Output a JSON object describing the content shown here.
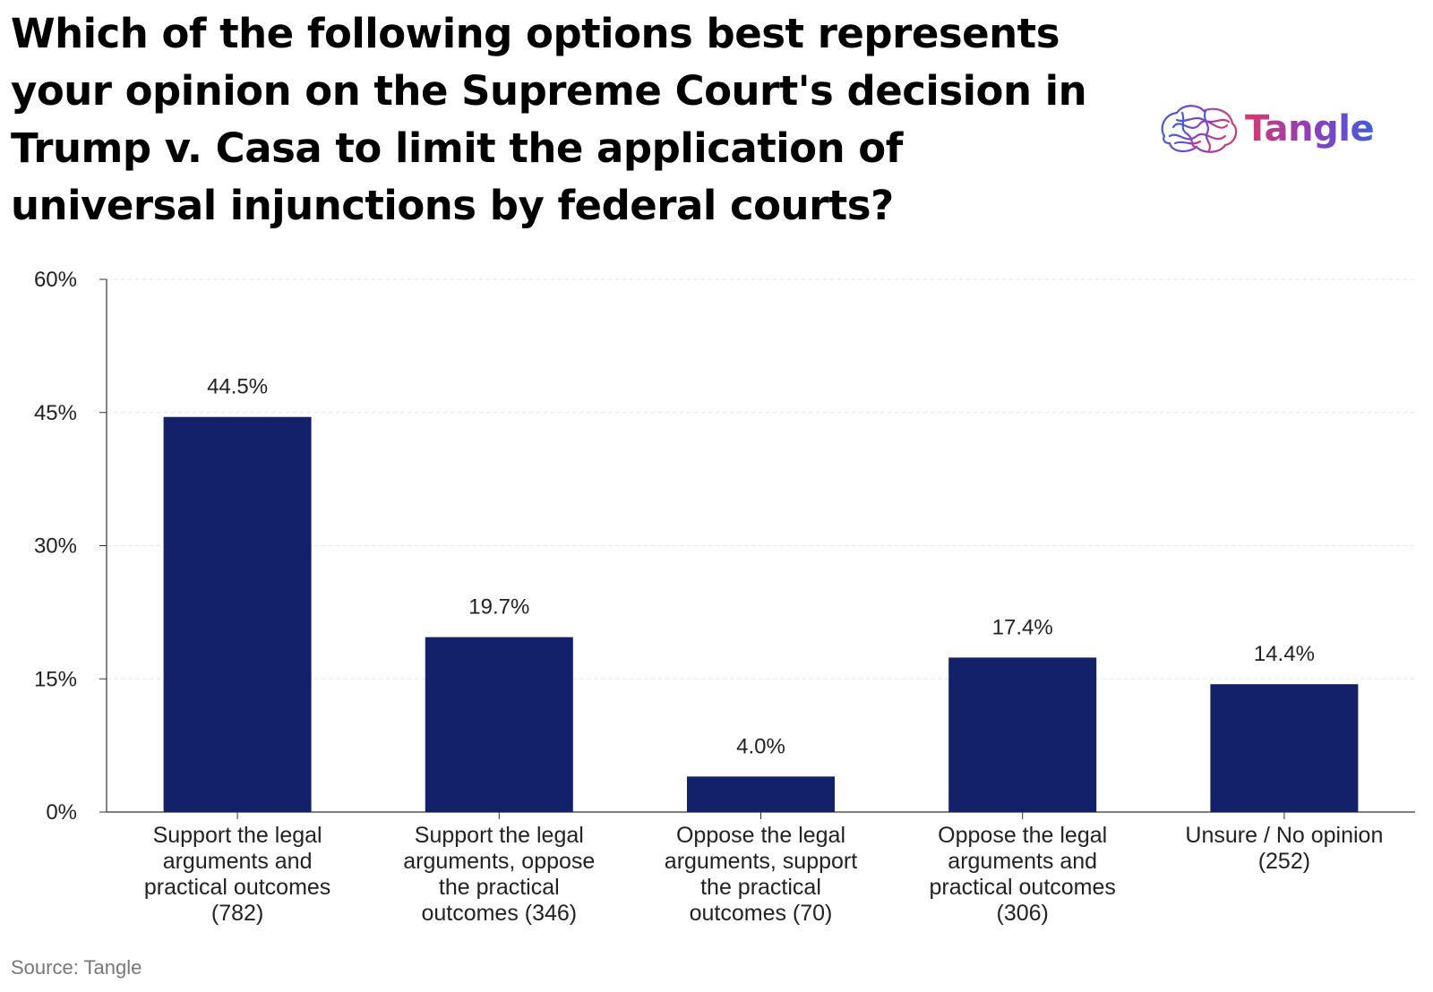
{
  "title": "Which of the following options best represents your opinion on the Supreme Court's decision in Trump v. Casa to limit the application of universal injunctions by federal courts?",
  "logo": {
    "text": "Tangle",
    "icon": "brain-icon",
    "colors": [
      "#d23c6e",
      "#8a3fbf",
      "#3f5fd6"
    ]
  },
  "source": "Source: Tangle",
  "colors": {
    "bar": "#13216a",
    "axis": "#333333",
    "grid": "#e6e6e6",
    "label": "#222222"
  },
  "chart_data": {
    "type": "bar",
    "categories": [
      [
        "Support the legal",
        "arguments and",
        "practical outcomes",
        "(782)"
      ],
      [
        "Support the legal",
        "arguments, oppose",
        "the practical",
        "outcomes (346)"
      ],
      [
        "Oppose the legal",
        "arguments, support",
        "the practical",
        "outcomes (70)"
      ],
      [
        "Oppose the legal",
        "arguments and",
        "practical outcomes",
        "(306)"
      ],
      [
        "Unsure / No opinion",
        "(252)"
      ]
    ],
    "values": [
      44.5,
      19.7,
      4.0,
      17.4,
      14.4
    ],
    "value_labels": [
      "44.5%",
      "19.7%",
      "4.0%",
      "17.4%",
      "14.4%"
    ],
    "yticks": [
      0,
      15,
      30,
      45,
      60
    ],
    "ytick_labels": [
      "0%",
      "15%",
      "30%",
      "45%",
      "60%"
    ],
    "ylim": [
      0,
      60
    ],
    "grid": true,
    "xlabel": "",
    "ylabel": ""
  }
}
